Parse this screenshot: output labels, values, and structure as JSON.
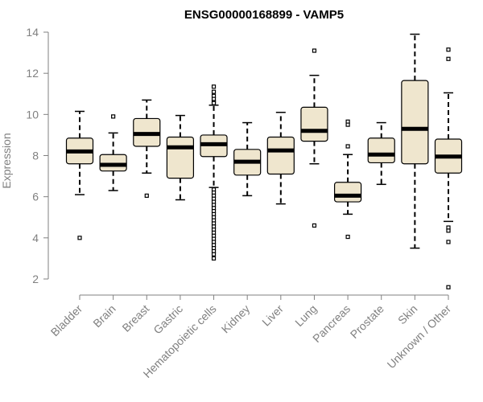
{
  "chart_data": {
    "type": "boxplot",
    "title": "ENSG00000168899 - VAMP5",
    "xlabel": "",
    "ylabel": "Expression",
    "ylim": [
      1.5,
      14
    ],
    "yticks": [
      2,
      4,
      6,
      8,
      10,
      12,
      14
    ],
    "categories": [
      "Bladder",
      "Brain",
      "Breast",
      "Gastric",
      "Hematopoietic cells",
      "Kidney",
      "Liver",
      "Lung",
      "Pancreas",
      "Prostate",
      "Skin",
      "Unknown / Other"
    ],
    "boxes": [
      {
        "name": "Bladder",
        "whisker_low": 6.1,
        "q1": 7.6,
        "median": 8.2,
        "q3": 8.85,
        "whisker_high": 10.15,
        "outliers": [
          4.0
        ]
      },
      {
        "name": "Brain",
        "whisker_low": 6.3,
        "q1": 7.25,
        "median": 7.55,
        "q3": 8.05,
        "whisker_high": 9.1,
        "outliers": [
          9.9
        ]
      },
      {
        "name": "Breast",
        "whisker_low": 7.15,
        "q1": 8.45,
        "median": 9.05,
        "q3": 9.8,
        "whisker_high": 10.7,
        "outliers": [
          6.05
        ]
      },
      {
        "name": "Gastric",
        "whisker_low": 5.85,
        "q1": 6.9,
        "median": 8.4,
        "q3": 8.9,
        "whisker_high": 9.95,
        "outliers": []
      },
      {
        "name": "Hematopoietic cells",
        "whisker_low": 6.45,
        "q1": 7.95,
        "median": 8.55,
        "q3": 9.0,
        "whisker_high": 10.45,
        "outliers": [
          11.35,
          11.1,
          10.9,
          10.75,
          10.6,
          10.55,
          6.35,
          6.2,
          6.05,
          5.9,
          5.75,
          5.6,
          5.45,
          5.3,
          5.15,
          5.0,
          4.85,
          4.7,
          4.55,
          4.4,
          4.25,
          4.1,
          3.95,
          3.8,
          3.65,
          3.5,
          3.35,
          3.2,
          3.0
        ]
      },
      {
        "name": "Kidney",
        "whisker_low": 6.05,
        "q1": 7.05,
        "median": 7.7,
        "q3": 8.3,
        "whisker_high": 9.6,
        "outliers": []
      },
      {
        "name": "Liver",
        "whisker_low": 5.65,
        "q1": 7.1,
        "median": 8.25,
        "q3": 8.9,
        "whisker_high": 10.1,
        "outliers": []
      },
      {
        "name": "Lung",
        "whisker_low": 7.6,
        "q1": 8.7,
        "median": 9.2,
        "q3": 10.35,
        "whisker_high": 11.9,
        "outliers": [
          13.1,
          4.6
        ]
      },
      {
        "name": "Pancreas",
        "whisker_low": 5.15,
        "q1": 5.75,
        "median": 6.05,
        "q3": 6.7,
        "whisker_high": 8.05,
        "outliers": [
          9.65,
          9.5,
          8.45,
          4.05
        ]
      },
      {
        "name": "Prostate",
        "whisker_low": 6.6,
        "q1": 7.65,
        "median": 8.05,
        "q3": 8.85,
        "whisker_high": 9.6,
        "outliers": []
      },
      {
        "name": "Skin",
        "whisker_low": 3.5,
        "q1": 7.6,
        "median": 9.3,
        "q3": 11.65,
        "whisker_high": 13.9,
        "outliers": []
      },
      {
        "name": "Unknown / Other",
        "whisker_low": 4.8,
        "q1": 7.15,
        "median": 7.95,
        "q3": 8.8,
        "whisker_high": 11.05,
        "outliers": [
          13.15,
          12.7,
          4.5,
          4.35,
          3.8,
          1.6
        ]
      }
    ]
  },
  "colors": {
    "box_fill": "#efe6ce",
    "axis": "#808080"
  }
}
